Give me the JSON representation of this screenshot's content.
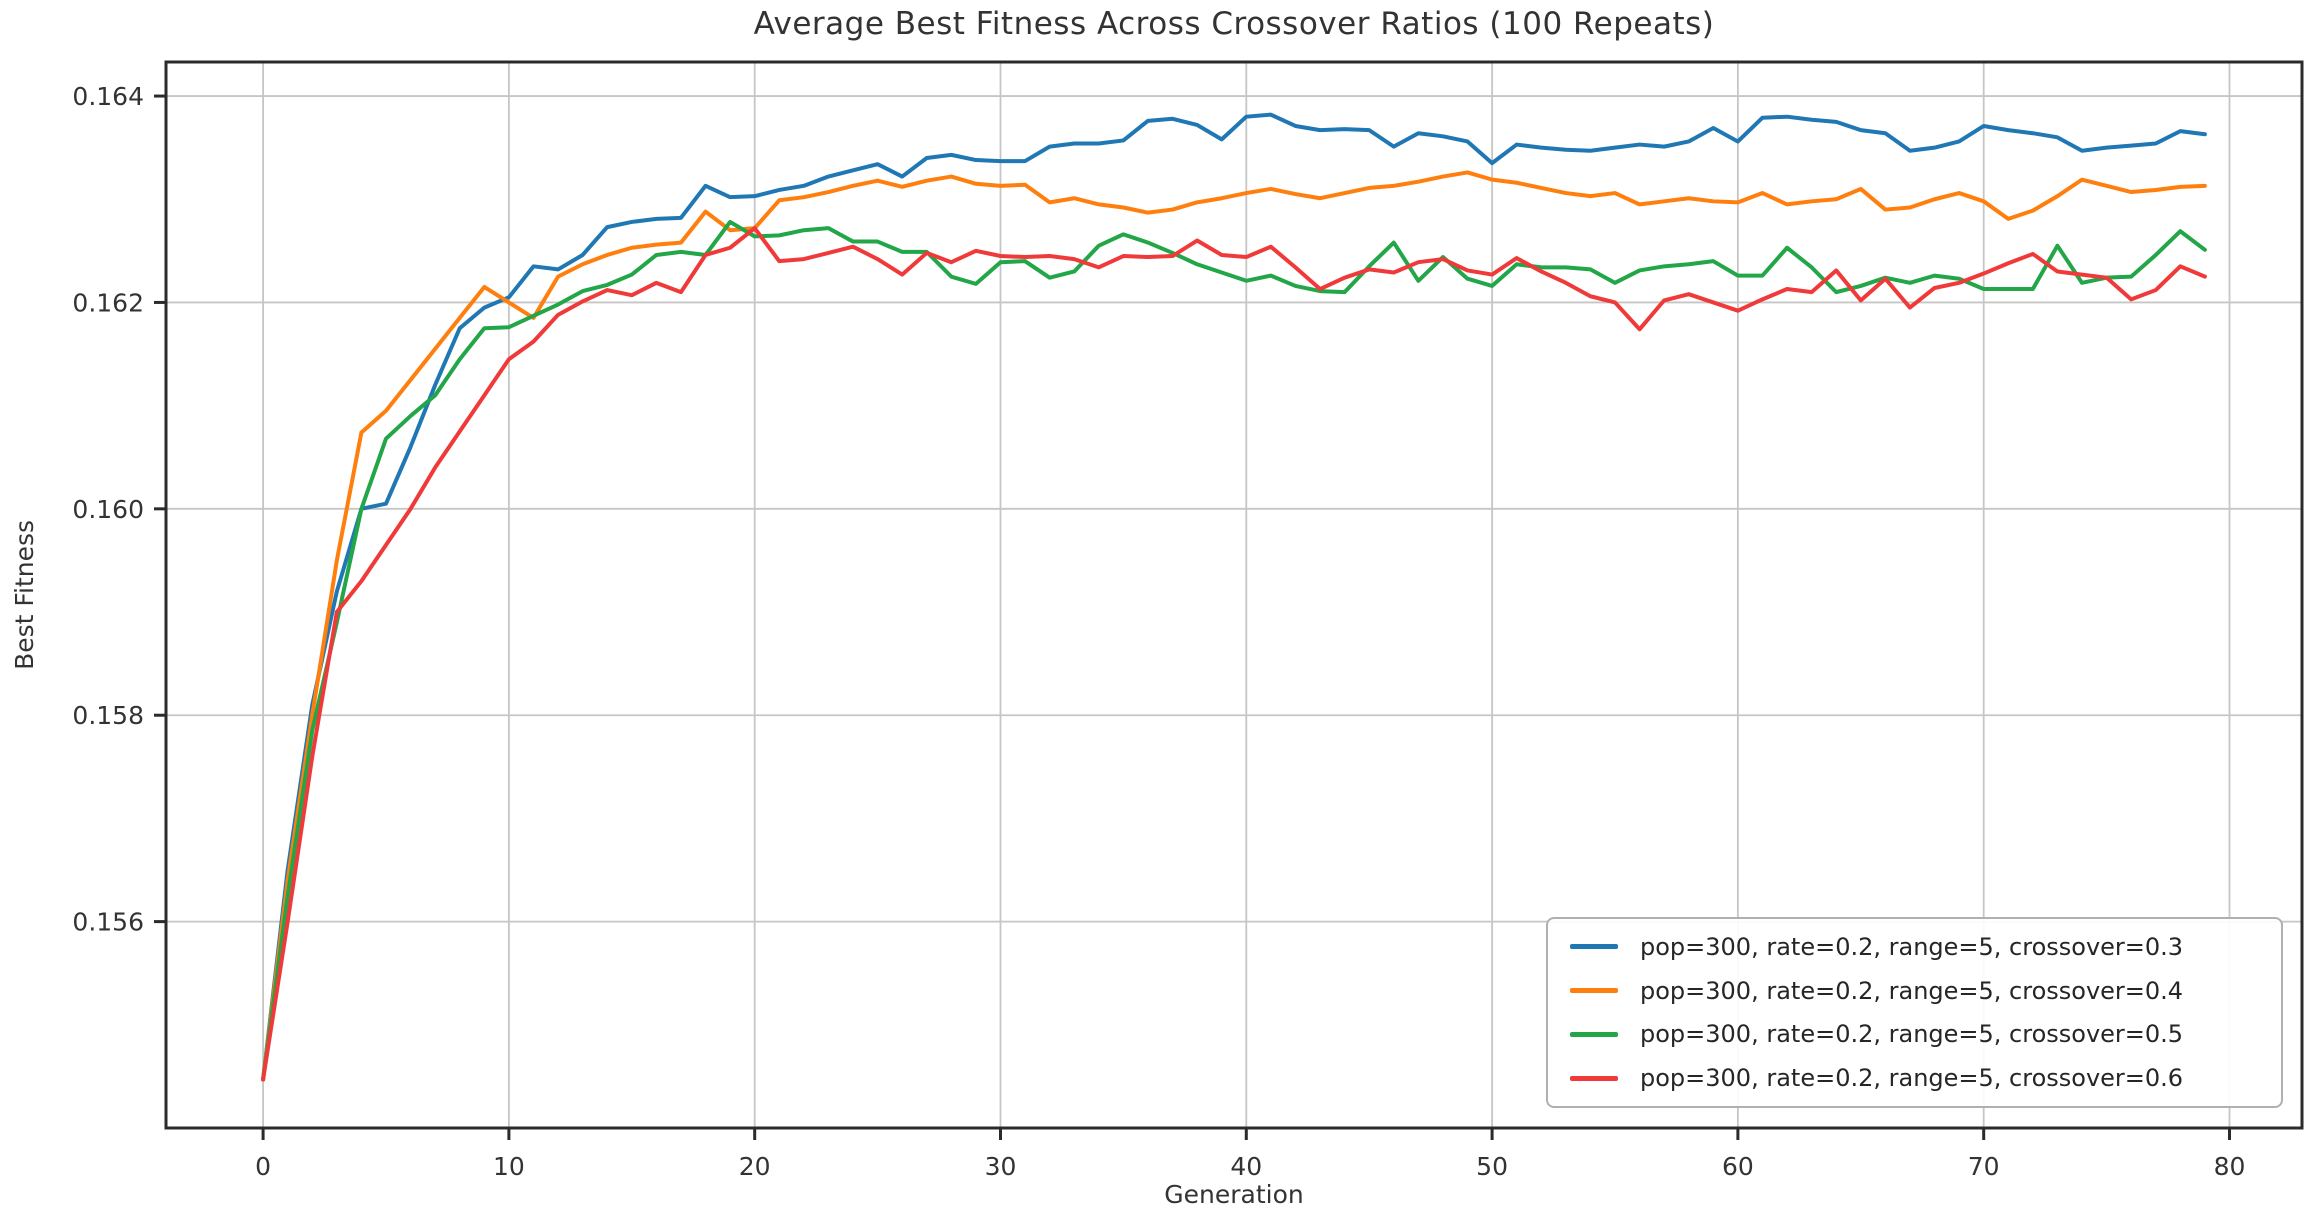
{
  "figure": {
    "background": "#ffffff",
    "axis_color": "#2b2b2b",
    "grid_color": "#c6c6c6",
    "text_color": "#333333"
  },
  "chart_data": {
    "type": "line",
    "title": "Average Best Fitness Across Crossover Ratios (100 Repeats)",
    "xlabel": "Generation",
    "ylabel": "Best Fitness",
    "grid": true,
    "legend_position": "lower right",
    "xlim": [
      -3.95,
      82.95
    ],
    "ylim": [
      0.154,
      0.16433
    ],
    "xticks": [
      0,
      10,
      20,
      30,
      40,
      50,
      60,
      70,
      80
    ],
    "xtick_labels": [
      "0",
      "10",
      "20",
      "30",
      "40",
      "50",
      "60",
      "70",
      "80"
    ],
    "yticks": [
      0.156,
      0.158,
      0.16,
      0.162,
      0.164
    ],
    "ytick_labels": [
      "0.156",
      "0.158",
      "0.160",
      "0.162",
      "0.164"
    ],
    "line_width": 4,
    "x": [
      0,
      1,
      2,
      3,
      4,
      5,
      6,
      7,
      8,
      9,
      10,
      11,
      12,
      13,
      14,
      15,
      16,
      17,
      18,
      19,
      20,
      21,
      22,
      23,
      24,
      25,
      26,
      27,
      28,
      29,
      30,
      31,
      32,
      33,
      34,
      35,
      36,
      37,
      38,
      39,
      40,
      41,
      42,
      43,
      44,
      45,
      46,
      47,
      48,
      49,
      50,
      51,
      52,
      53,
      54,
      55,
      56,
      57,
      58,
      59,
      60,
      61,
      62,
      63,
      64,
      65,
      66,
      67,
      68,
      69,
      70,
      71,
      72,
      73,
      74,
      75,
      76,
      77,
      78,
      79
    ],
    "series": [
      {
        "name": "pop=300, rate=0.2, range=5, crossover=0.3",
        "color": "#1f77b4",
        "values": [
          0.15447,
          0.1565,
          0.1581,
          0.1592,
          0.16,
          0.16005,
          0.1606,
          0.1612,
          0.16175,
          0.16195,
          0.16205,
          0.16235,
          0.16232,
          0.16246,
          0.16273,
          0.16278,
          0.16281,
          0.16282,
          0.16313,
          0.16302,
          0.16303,
          0.16309,
          0.16313,
          0.16322,
          0.16328,
          0.16334,
          0.16322,
          0.1634,
          0.16343,
          0.16338,
          0.16337,
          0.16337,
          0.16351,
          0.16354,
          0.16354,
          0.16357,
          0.16376,
          0.16378,
          0.16372,
          0.16358,
          0.1638,
          0.16382,
          0.16371,
          0.16367,
          0.16368,
          0.16367,
          0.16351,
          0.16364,
          0.16361,
          0.16356,
          0.16335,
          0.16353,
          0.1635,
          0.16348,
          0.16347,
          0.1635,
          0.16353,
          0.16351,
          0.16356,
          0.16369,
          0.16356,
          0.16379,
          0.1638,
          0.16377,
          0.16375,
          0.16367,
          0.16364,
          0.16347,
          0.1635,
          0.16356,
          0.16371,
          0.16367,
          0.16364,
          0.1636,
          0.16347,
          0.1635,
          0.16352,
          0.16354,
          0.16366,
          0.16363
        ]
      },
      {
        "name": "pop=300, rate=0.2, range=5, crossover=0.4",
        "color": "#ff7f0e",
        "values": [
          0.15447,
          0.1564,
          0.158,
          0.1595,
          0.16074,
          0.16095,
          0.16125,
          0.16155,
          0.16185,
          0.16215,
          0.162,
          0.16185,
          0.16225,
          0.16237,
          0.16246,
          0.16253,
          0.16256,
          0.16258,
          0.16288,
          0.1627,
          0.16272,
          0.16299,
          0.16302,
          0.16307,
          0.16313,
          0.16318,
          0.16312,
          0.16318,
          0.16322,
          0.16315,
          0.16313,
          0.16314,
          0.16297,
          0.16301,
          0.16295,
          0.16292,
          0.16287,
          0.1629,
          0.16297,
          0.16301,
          0.16306,
          0.1631,
          0.16305,
          0.16301,
          0.16306,
          0.16311,
          0.16313,
          0.16317,
          0.16322,
          0.16326,
          0.16319,
          0.16316,
          0.16311,
          0.16306,
          0.16303,
          0.16306,
          0.16295,
          0.16298,
          0.16301,
          0.16298,
          0.16297,
          0.16306,
          0.16295,
          0.16298,
          0.163,
          0.1631,
          0.1629,
          0.16292,
          0.163,
          0.16306,
          0.16298,
          0.16281,
          0.16289,
          0.16303,
          0.16319,
          0.16313,
          0.16307,
          0.16309,
          0.16312,
          0.16313
        ]
      },
      {
        "name": "pop=300, rate=0.2, range=5, crossover=0.5",
        "color": "#22a648",
        "values": [
          0.15447,
          0.15625,
          0.15785,
          0.1589,
          0.16,
          0.16068,
          0.1609,
          0.1611,
          0.16145,
          0.16175,
          0.16176,
          0.16187,
          0.16198,
          0.16211,
          0.16217,
          0.16227,
          0.16246,
          0.16249,
          0.16246,
          0.16278,
          0.16264,
          0.16265,
          0.1627,
          0.16272,
          0.16259,
          0.16259,
          0.16249,
          0.16249,
          0.16225,
          0.16218,
          0.16239,
          0.1624,
          0.16224,
          0.1623,
          0.16255,
          0.16266,
          0.16258,
          0.16248,
          0.16237,
          0.16229,
          0.16221,
          0.16226,
          0.16216,
          0.16211,
          0.1621,
          0.16235,
          0.16258,
          0.16221,
          0.16244,
          0.16223,
          0.16216,
          0.16237,
          0.16234,
          0.16234,
          0.16232,
          0.16219,
          0.16231,
          0.16235,
          0.16237,
          0.1624,
          0.16226,
          0.16226,
          0.16253,
          0.16234,
          0.1621,
          0.16216,
          0.16224,
          0.16219,
          0.16226,
          0.16223,
          0.16213,
          0.16213,
          0.16213,
          0.16255,
          0.16219,
          0.16224,
          0.16225,
          0.16246,
          0.16269,
          0.16251
        ]
      },
      {
        "name": "pop=300, rate=0.2, range=5, crossover=0.6",
        "color": "#f03a3a",
        "values": [
          0.15447,
          0.156,
          0.1576,
          0.159,
          0.1593,
          0.15965,
          0.16,
          0.1604,
          0.16075,
          0.1611,
          0.16145,
          0.16162,
          0.16188,
          0.16201,
          0.16212,
          0.16207,
          0.16219,
          0.1621,
          0.16246,
          0.16253,
          0.16272,
          0.1624,
          0.16242,
          0.16248,
          0.16254,
          0.16242,
          0.16227,
          0.16248,
          0.16239,
          0.1625,
          0.16245,
          0.16244,
          0.16245,
          0.16242,
          0.16234,
          0.16245,
          0.16244,
          0.16245,
          0.1626,
          0.16246,
          0.16244,
          0.16254,
          0.16234,
          0.16213,
          0.16224,
          0.16232,
          0.16229,
          0.16239,
          0.16242,
          0.16231,
          0.16227,
          0.16243,
          0.1623,
          0.16219,
          0.16206,
          0.162,
          0.16174,
          0.16202,
          0.16208,
          0.162,
          0.16192,
          0.16203,
          0.16213,
          0.1621,
          0.16231,
          0.16202,
          0.16223,
          0.16195,
          0.16214,
          0.16219,
          0.16228,
          0.16238,
          0.16247,
          0.1623,
          0.16227,
          0.16224,
          0.16203,
          0.16212,
          0.16235,
          0.16225
        ]
      }
    ]
  }
}
